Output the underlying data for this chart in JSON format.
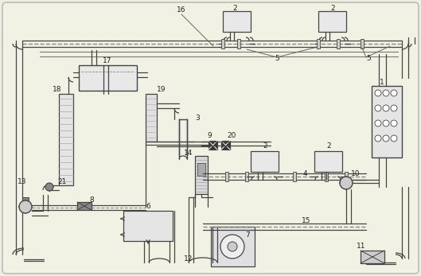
{
  "bg_outer": "#efefdf",
  "bg_inner": "#f2f2e4",
  "lc": "#444444",
  "figsize": [
    5.29,
    3.47
  ],
  "dpi": 100
}
